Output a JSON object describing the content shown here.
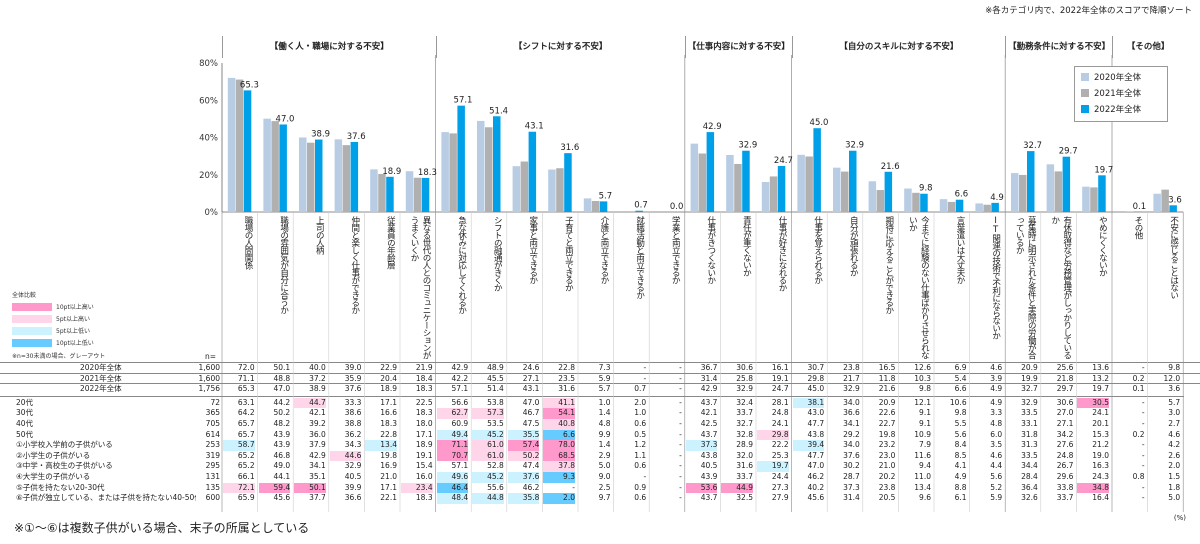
{
  "note_top": "※各カテゴリ内で、2022年全体のスコアで降順ソート",
  "categories": [
    {
      "name": "【働く人・職場に対する不安】"
    },
    {
      "name": "【シフトに対する不安】"
    },
    {
      "name": "【仕事内容に対する不安】"
    },
    {
      "name": "【自分のスキルに対する不安】"
    },
    {
      "name": "【勤務条件に対する不安】"
    },
    {
      "name": "【その他】"
    }
  ],
  "questions": [
    "職場の人間関係",
    "職場の雰囲気が自分に合うか",
    "上司の人柄",
    "仲間と楽しく仕事ができるか",
    "従業員の年齢層",
    "異なる世代の人とのコミュニケーションがうまくいくか",
    "急な休みに対応してくれるか",
    "シフトの融通がきくか",
    "家事と両立できるか",
    "子育てと両立できるか",
    "介護と両立できるか",
    "就職活動と両立できるか",
    "学業と両立できるか",
    "仕事がきつくないか",
    "責任が重くないか",
    "仕事が好きになれるか",
    "仕事を覚えられるか",
    "自分が頑張れるか",
    "期待に応えることができるか",
    "今までに経験のない仕事ばかりさせられないか",
    "言葉遣いは大丈夫か",
    "IT関連の技術で不利にならないか",
    "募集時に明示された条件と実際の労働が合っているか",
    "有休取得など労務管理がしっかりしているか",
    "やめにくくないか",
    "その他",
    "不安に感じることはない"
  ],
  "legend": [
    {
      "label": "2020年全体",
      "color": "#b8cce4"
    },
    {
      "label": "2021年全体",
      "color": "#b0b0b0"
    },
    {
      "label": "2022年全体",
      "color": "#00a0e9"
    }
  ],
  "side_legend": {
    "title": "全体比較",
    "items": [
      {
        "label": "10pt以上高い",
        "color": "#ff99cc"
      },
      {
        "label": "5pt以上高い",
        "color": "#ffd5ea"
      },
      {
        "label": "5pt以上低い",
        "color": "#ccf2ff"
      },
      {
        "label": "10pt以上低い",
        "color": "#66ccff"
      }
    ],
    "note": "※n=30未満の場合、グレーアウト"
  },
  "n_header": "n=",
  "chart_data": {
    "type": "bar",
    "ylim": [
      0,
      80
    ],
    "yticks": [
      "0%",
      "20%",
      "40%",
      "60%",
      "80%"
    ],
    "series": [
      {
        "name": "2020年全体",
        "values": [
          72.0,
          50.1,
          40.0,
          39.0,
          22.9,
          21.9,
          42.9,
          48.9,
          24.6,
          22.8,
          7.3,
          null,
          null,
          36.7,
          30.6,
          16.1,
          30.7,
          23.8,
          16.5,
          12.6,
          6.9,
          4.6,
          20.9,
          25.6,
          13.6,
          null,
          9.8
        ]
      },
      {
        "name": "2021年全体",
        "values": [
          71.1,
          48.8,
          37.2,
          35.9,
          20.4,
          18.4,
          42.2,
          45.5,
          27.1,
          23.5,
          5.9,
          null,
          null,
          31.4,
          25.8,
          19.1,
          29.8,
          21.7,
          11.8,
          10.3,
          5.4,
          3.9,
          19.9,
          21.8,
          13.2,
          0.2,
          12.0
        ]
      },
      {
        "name": "2022年全体",
        "values": [
          65.3,
          47.0,
          38.9,
          37.6,
          18.9,
          18.3,
          57.1,
          51.4,
          43.1,
          31.6,
          5.7,
          0.7,
          0.0,
          42.9,
          32.9,
          24.7,
          45.0,
          32.9,
          21.6,
          9.8,
          6.6,
          4.9,
          32.7,
          29.7,
          19.7,
          0.1,
          3.6
        ]
      }
    ],
    "labels_2022": [
      "65.3",
      "47.0",
      "38.9",
      "37.6",
      "18.9",
      "18.3",
      "57.1",
      "51.4",
      "43.1",
      "31.6",
      "5.7",
      "0.7",
      "0.0",
      "42.9",
      "32.9",
      "24.7",
      "45.0",
      "32.9",
      "21.6",
      "9.8",
      "6.6",
      "4.9",
      "32.7",
      "29.7",
      "19.7",
      "0.1",
      "3.6"
    ]
  },
  "table": {
    "rows": [
      {
        "label": "2020年全体",
        "n": "1,600",
        "v": [
          "72.0",
          "50.1",
          "40.0",
          "39.0",
          "22.9",
          "21.9",
          "42.9",
          "48.9",
          "24.6",
          "22.8",
          "7.3",
          "-",
          "-",
          "36.7",
          "30.6",
          "16.1",
          "30.7",
          "23.8",
          "16.5",
          "12.6",
          "6.9",
          "4.6",
          "20.9",
          "25.6",
          "13.6",
          "-",
          "9.8"
        ]
      },
      {
        "label": "2021年全体",
        "n": "1,600",
        "v": [
          "71.1",
          "48.8",
          "37.2",
          "35.9",
          "20.4",
          "18.4",
          "42.2",
          "45.5",
          "27.1",
          "23.5",
          "5.9",
          "-",
          "-",
          "31.4",
          "25.8",
          "19.1",
          "29.8",
          "21.7",
          "11.8",
          "10.3",
          "5.4",
          "3.9",
          "19.9",
          "21.8",
          "13.2",
          "0.2",
          "12.0"
        ]
      },
      {
        "label": "2022年全体",
        "n": "1,756",
        "v": [
          "65.3",
          "47.0",
          "38.9",
          "37.6",
          "18.9",
          "18.3",
          "57.1",
          "51.4",
          "43.1",
          "31.6",
          "5.7",
          "0.7",
          "-",
          "42.9",
          "32.9",
          "24.7",
          "45.0",
          "32.9",
          "21.6",
          "9.8",
          "6.6",
          "4.9",
          "32.7",
          "29.7",
          "19.7",
          "0.1",
          "3.6"
        ]
      },
      {
        "label": "20代",
        "n": "72",
        "v": [
          "63.1",
          "44.2",
          "44.7",
          "33.3",
          "17.1",
          "22.5",
          "56.6",
          "53.8",
          "47.0",
          "41.1",
          "1.0",
          "2.0",
          "-",
          "43.7",
          "32.4",
          "28.1",
          "38.1",
          "34.0",
          "20.9",
          "12.1",
          "10.6",
          "4.9",
          "32.9",
          "30.6",
          "30.5",
          "-",
          "5.7"
        ]
      },
      {
        "label": "30代",
        "n": "365",
        "v": [
          "64.2",
          "50.2",
          "42.1",
          "38.6",
          "16.6",
          "18.3",
          "62.7",
          "57.3",
          "46.7",
          "54.1",
          "1.4",
          "1.0",
          "-",
          "42.1",
          "33.7",
          "24.8",
          "43.0",
          "36.6",
          "22.6",
          "9.1",
          "9.8",
          "3.3",
          "33.5",
          "27.0",
          "24.1",
          "-",
          "3.0"
        ]
      },
      {
        "label": "40代",
        "n": "705",
        "v": [
          "65.7",
          "48.2",
          "39.2",
          "38.8",
          "18.3",
          "18.0",
          "60.9",
          "53.5",
          "47.5",
          "40.8",
          "4.8",
          "0.6",
          "-",
          "42.5",
          "32.7",
          "24.1",
          "47.7",
          "34.1",
          "22.7",
          "9.1",
          "5.5",
          "4.8",
          "33.1",
          "27.1",
          "20.1",
          "-",
          "2.7"
        ]
      },
      {
        "label": "50代",
        "n": "614",
        "v": [
          "65.7",
          "43.9",
          "36.0",
          "36.2",
          "22.8",
          "17.1",
          "49.4",
          "45.2",
          "35.5",
          "6.6",
          "9.9",
          "0.5",
          "-",
          "43.7",
          "32.8",
          "29.8",
          "43.8",
          "29.2",
          "19.8",
          "10.9",
          "5.6",
          "6.0",
          "31.8",
          "34.2",
          "15.3",
          "0.2",
          "4.6"
        ]
      },
      {
        "label": "①小学校入学前の子供がいる",
        "n": "253",
        "v": [
          "58.7",
          "43.9",
          "37.9",
          "34.3",
          "13.4",
          "18.9",
          "71.1",
          "61.0",
          "57.4",
          "78.0",
          "1.4",
          "1.2",
          "-",
          "37.3",
          "28.9",
          "22.2",
          "39.4",
          "34.0",
          "23.2",
          "7.9",
          "8.4",
          "3.5",
          "31.3",
          "27.6",
          "21.2",
          "-",
          "4.2"
        ]
      },
      {
        "label": "②小学生の子供がいる",
        "n": "319",
        "v": [
          "65.2",
          "46.8",
          "42.9",
          "44.6",
          "19.8",
          "19.1",
          "70.7",
          "61.0",
          "50.2",
          "68.5",
          "2.9",
          "1.1",
          "-",
          "43.8",
          "32.0",
          "25.3",
          "47.7",
          "37.6",
          "23.0",
          "11.6",
          "8.5",
          "4.6",
          "33.5",
          "24.8",
          "19.0",
          "-",
          "2.6"
        ]
      },
      {
        "label": "③中学・高校生の子供がいる",
        "n": "295",
        "v": [
          "65.2",
          "49.0",
          "34.1",
          "32.9",
          "16.9",
          "15.4",
          "57.1",
          "52.8",
          "47.4",
          "37.8",
          "5.0",
          "0.6",
          "-",
          "40.5",
          "31.6",
          "19.7",
          "47.0",
          "30.2",
          "21.0",
          "9.4",
          "4.1",
          "4.4",
          "34.4",
          "26.7",
          "16.3",
          "-",
          "2.0"
        ]
      },
      {
        "label": "④大学生の子供がいる",
        "n": "131",
        "v": [
          "66.1",
          "44.1",
          "35.1",
          "40.5",
          "21.0",
          "16.0",
          "49.6",
          "45.2",
          "37.6",
          "9.3",
          "9.0",
          "-",
          "-",
          "43.9",
          "33.7",
          "24.4",
          "46.2",
          "28.7",
          "20.2",
          "11.0",
          "4.9",
          "5.6",
          "28.4",
          "29.6",
          "24.3",
          "0.8",
          "1.5"
        ]
      },
      {
        "label": "⑤子供を持たない20-30代",
        "n": "135",
        "v": [
          "72.1",
          "59.4",
          "50.1",
          "39.9",
          "17.1",
          "23.4",
          "46.4",
          "55.6",
          "46.2",
          "-",
          "2.5",
          "0.9",
          "-",
          "53.6",
          "44.9",
          "27.3",
          "40.2",
          "37.3",
          "23.8",
          "13.4",
          "8.8",
          "5.2",
          "36.4",
          "33.8",
          "34.8",
          "-",
          "1.8"
        ]
      },
      {
        "label": "⑥子供が独立している、または子供を持たない40-50代",
        "n": "600",
        "v": [
          "65.9",
          "45.6",
          "37.7",
          "36.6",
          "22.1",
          "18.3",
          "48.4",
          "44.8",
          "35.8",
          "2.0",
          "9.7",
          "0.6",
          "-",
          "43.7",
          "32.5",
          "27.9",
          "45.6",
          "31.4",
          "20.5",
          "9.6",
          "6.1",
          "5.9",
          "32.6",
          "33.7",
          "16.4",
          "-",
          "5.0"
        ]
      }
    ]
  },
  "footnote": "※①～⑥は複数子供がいる場合、末子の所属としている",
  "unit": "(%)"
}
